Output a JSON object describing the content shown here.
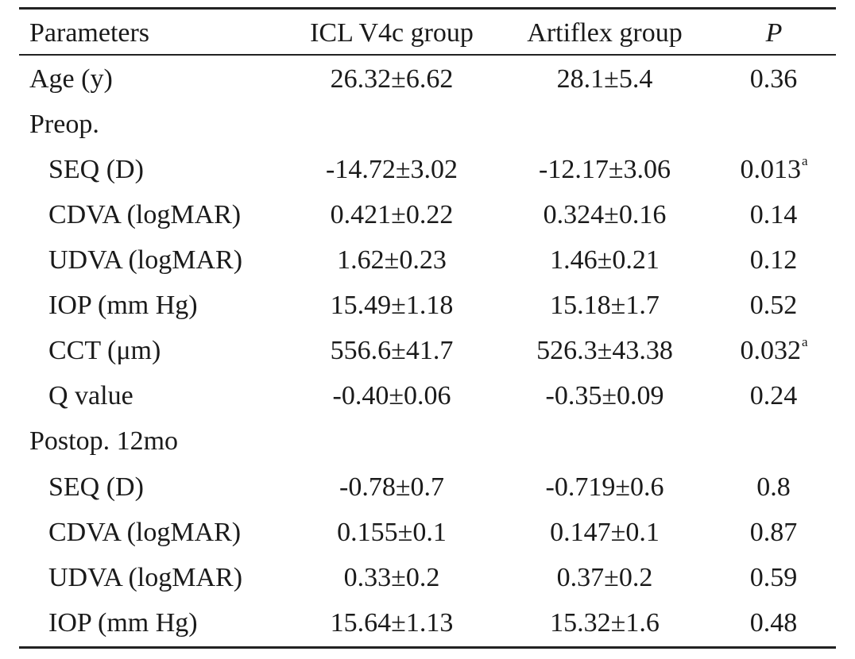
{
  "table": {
    "headers": {
      "parameters": "Parameters",
      "icl": "ICL V4c group",
      "artiflex": "Artiflex group",
      "p": "P"
    },
    "rows": [
      {
        "label": "Age (y)",
        "icl": "26.32±6.62",
        "artiflex": "28.1±5.4",
        "p": "0.36",
        "p_sup": ""
      },
      {
        "label": "Preop.",
        "icl": "",
        "artiflex": "",
        "p": "",
        "p_sup": ""
      },
      {
        "label": "SEQ (D)",
        "icl": "-14.72±3.02",
        "artiflex": "-12.17±3.06",
        "p": "0.013",
        "p_sup": "a"
      },
      {
        "label": "CDVA (logMAR)",
        "icl": "0.421±0.22",
        "artiflex": "0.324±0.16",
        "p": "0.14",
        "p_sup": ""
      },
      {
        "label": "UDVA (logMAR)",
        "icl": "1.62±0.23",
        "artiflex": "1.46±0.21",
        "p": "0.12",
        "p_sup": ""
      },
      {
        "label": "IOP (mm Hg)",
        "icl": "15.49±1.18",
        "artiflex": "15.18±1.7",
        "p": "0.52",
        "p_sup": ""
      },
      {
        "label": "CCT (μm)",
        "icl": "556.6±41.7",
        "artiflex": "526.3±43.38",
        "p": "0.032",
        "p_sup": "a"
      },
      {
        "label": "Q value",
        "icl": "-0.40±0.06",
        "artiflex": "-0.35±0.09",
        "p": "0.24",
        "p_sup": ""
      },
      {
        "label": "Postop. 12mo",
        "icl": "",
        "artiflex": "",
        "p": "",
        "p_sup": ""
      },
      {
        "label": "SEQ (D)",
        "icl": "-0.78±0.7",
        "artiflex": "-0.719±0.6",
        "p": "0.8",
        "p_sup": ""
      },
      {
        "label": "CDVA (logMAR)",
        "icl": "0.155±0.1",
        "artiflex": "0.147±0.1",
        "p": "0.87",
        "p_sup": ""
      },
      {
        "label": "UDVA (logMAR)",
        "icl": "0.33±0.2",
        "artiflex": "0.37±0.2",
        "p": "0.59",
        "p_sup": ""
      },
      {
        "label": "IOP (mm Hg)",
        "icl": "15.64±1.13",
        "artiflex": "15.32±1.6",
        "p": "0.48",
        "p_sup": ""
      }
    ]
  }
}
